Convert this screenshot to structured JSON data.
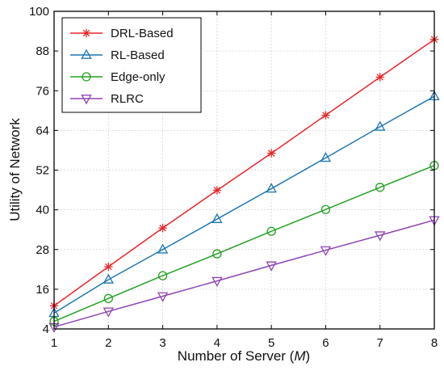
{
  "chart_data": {
    "type": "line",
    "title": "",
    "xlabel": "Number of Server (",
    "xlabel_var": "M",
    "xlabel_close": ")",
    "ylabel": "Utility of Network",
    "x": [
      1,
      2,
      3,
      4,
      5,
      6,
      7,
      8
    ],
    "xlim": [
      1,
      8
    ],
    "ylim": [
      4,
      100
    ],
    "x_ticks": [
      "1",
      "2",
      "3",
      "4",
      "5",
      "6",
      "7",
      "8"
    ],
    "y_ticks": [
      4,
      16,
      28,
      40,
      52,
      64,
      76,
      88,
      100
    ],
    "y_tick_labels": [
      "4",
      "16",
      "28",
      "40",
      "52",
      "64",
      "76",
      "88",
      "100"
    ],
    "grid": true,
    "legend_position": "top-left",
    "series": [
      {
        "name": "DRL-Based",
        "color": "#e8262a",
        "marker": "asterisk",
        "values": [
          11.0,
          22.8,
          34.5,
          45.9,
          57.1,
          68.6,
          80.1,
          91.5
        ]
      },
      {
        "name": "RL-Based",
        "color": "#1f77b4",
        "marker": "triangle-up",
        "values": [
          8.8,
          18.9,
          28.0,
          37.2,
          46.4,
          55.7,
          65.1,
          74.3
        ]
      },
      {
        "name": "Edge-only",
        "color": "#23a023",
        "marker": "circle",
        "values": [
          6.3,
          13.2,
          20.1,
          26.7,
          33.5,
          40.1,
          46.8,
          53.4
        ]
      },
      {
        "name": "RLRC",
        "color": "#8e46b4",
        "marker": "triangle-down",
        "values": [
          4.6,
          9.3,
          13.9,
          18.5,
          23.2,
          27.8,
          32.3,
          36.9
        ]
      }
    ]
  }
}
